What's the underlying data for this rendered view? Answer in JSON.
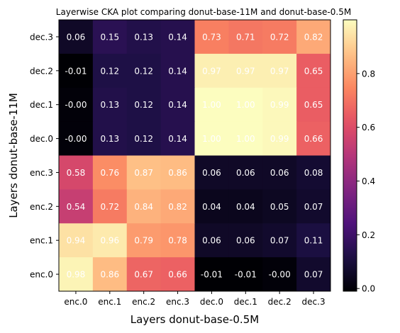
{
  "chart_data": {
    "type": "heatmap",
    "title": "Layerwise CKA plot comparing donut-base-11M and donut-base-0.5M",
    "xlabel": "Layers donut-base-0.5M",
    "ylabel": "Layers donut-base-11M",
    "x_categories": [
      "enc.0",
      "enc.1",
      "enc.2",
      "enc.3",
      "dec.0",
      "dec.1",
      "dec.2",
      "dec.3"
    ],
    "y_categories": [
      "dec.3",
      "dec.2",
      "dec.1",
      "dec.0",
      "enc.3",
      "enc.2",
      "enc.1",
      "enc.0"
    ],
    "values": [
      [
        0.06,
        0.15,
        0.13,
        0.14,
        0.73,
        0.71,
        0.72,
        0.82
      ],
      [
        -0.01,
        0.12,
        0.12,
        0.14,
        0.97,
        0.97,
        0.97,
        0.65
      ],
      [
        -0.0,
        0.13,
        0.12,
        0.14,
        1.0,
        1.0,
        0.99,
        0.65
      ],
      [
        -0.0,
        0.13,
        0.12,
        0.14,
        1.0,
        1.0,
        0.99,
        0.66
      ],
      [
        0.58,
        0.76,
        0.87,
        0.86,
        0.06,
        0.06,
        0.06,
        0.08
      ],
      [
        0.54,
        0.72,
        0.84,
        0.82,
        0.04,
        0.04,
        0.05,
        0.07
      ],
      [
        0.94,
        0.96,
        0.79,
        0.78,
        0.06,
        0.06,
        0.07,
        0.11
      ],
      [
        0.98,
        0.86,
        0.67,
        0.66,
        -0.01,
        -0.01,
        -0.0,
        0.07
      ]
    ],
    "cell_labels": [
      [
        "0.06",
        "0.15",
        "0.13",
        "0.14",
        "0.73",
        "0.71",
        "0.72",
        "0.82"
      ],
      [
        "-0.01",
        "0.12",
        "0.12",
        "0.14",
        "0.97",
        "0.97",
        "0.97",
        "0.65"
      ],
      [
        "-0.00",
        "0.13",
        "0.12",
        "0.14",
        "1.00",
        "1.00",
        "0.99",
        "0.65"
      ],
      [
        "-0.00",
        "0.13",
        "0.12",
        "0.14",
        "1.00",
        "1.00",
        "0.99",
        "0.66"
      ],
      [
        "0.58",
        "0.76",
        "0.87",
        "0.86",
        "0.06",
        "0.06",
        "0.06",
        "0.08"
      ],
      [
        "0.54",
        "0.72",
        "0.84",
        "0.82",
        "0.04",
        "0.04",
        "0.05",
        "0.07"
      ],
      [
        "0.94",
        "0.96",
        "0.79",
        "0.78",
        "0.06",
        "0.06",
        "0.07",
        "0.11"
      ],
      [
        "0.98",
        "0.86",
        "0.67",
        "0.66",
        "-0.01",
        "-0.01",
        "-0.00",
        "0.07"
      ]
    ],
    "colormap": "magma",
    "vmin": -0.01,
    "vmax": 1.0,
    "colorbar_ticks": [
      0.0,
      0.2,
      0.4,
      0.6,
      0.8
    ],
    "colorbar_tick_labels": [
      "0.0",
      "0.2",
      "0.4",
      "0.6",
      "0.8"
    ],
    "annotation_color_dark_cells": "#ffffff",
    "annotation_color_light_cells": "#ffffff"
  }
}
